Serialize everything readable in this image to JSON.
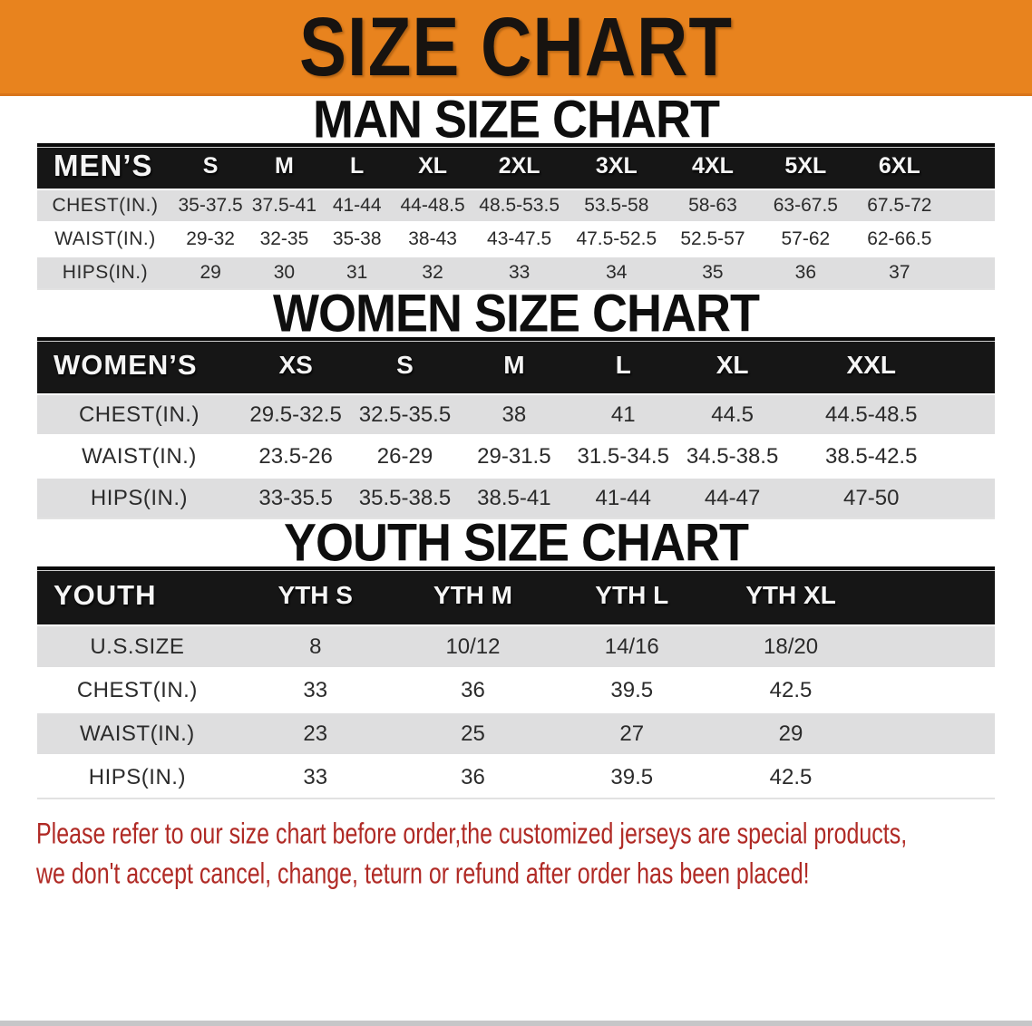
{
  "banner": {
    "title": "SIZE CHART",
    "bg_color": "#E8831E"
  },
  "sections": [
    {
      "id": "men",
      "heading": "MAN SIZE CHART",
      "table": {
        "header_label": "MEN’S",
        "columns": [
          "S",
          "M",
          "L",
          "XL",
          "2XL",
          "3XL",
          "4XL",
          "5XL",
          "6XL"
        ],
        "rows": [
          {
            "label": "CHEST(IN.)",
            "values": [
              "35-37.5",
              "37.5-41",
              "41-44",
              "44-48.5",
              "48.5-53.5",
              "53.5-58",
              "58-63",
              "63-67.5",
              "67.5-72"
            ]
          },
          {
            "label": "WAIST(IN.)",
            "values": [
              "29-32",
              "32-35",
              "35-38",
              "38-43",
              "43-47.5",
              "47.5-52.5",
              "52.5-57",
              "57-62",
              "62-66.5"
            ]
          },
          {
            "label": "HIPS(IN.)",
            "values": [
              "29",
              "30",
              "31",
              "32",
              "33",
              "34",
              "35",
              "36",
              "37"
            ]
          }
        ]
      }
    },
    {
      "id": "women",
      "heading": "WOMEN SIZE CHART",
      "table": {
        "header_label": "WOMEN’S",
        "columns": [
          "XS",
          "S",
          "M",
          "L",
          "XL",
          "XXL"
        ],
        "rows": [
          {
            "label": "CHEST(IN.)",
            "values": [
              "29.5-32.5",
              "32.5-35.5",
              "38",
              "41",
              "44.5",
              "44.5-48.5"
            ]
          },
          {
            "label": "WAIST(IN.)",
            "values": [
              "23.5-26",
              "26-29",
              "29-31.5",
              "31.5-34.5",
              "34.5-38.5",
              "38.5-42.5"
            ]
          },
          {
            "label": "HIPS(IN.)",
            "values": [
              "33-35.5",
              "35.5-38.5",
              "38.5-41",
              "41-44",
              "44-47",
              "47-50"
            ]
          }
        ]
      }
    },
    {
      "id": "youth",
      "heading": "YOUTH SIZE CHART",
      "table": {
        "header_label": "YOUTH",
        "columns": [
          "YTH S",
          "YTH M",
          "YTH L",
          "YTH XL"
        ],
        "rows": [
          {
            "label": "U.S.SIZE",
            "values": [
              "8",
              "10/12",
              "14/16",
              "18/20"
            ]
          },
          {
            "label": "CHEST(IN.)",
            "values": [
              "33",
              "36",
              "39.5",
              "42.5"
            ]
          },
          {
            "label": "WAIST(IN.)",
            "values": [
              "23",
              "25",
              "27",
              "29"
            ]
          },
          {
            "label": "HIPS(IN.)",
            "values": [
              "33",
              "36",
              "39.5",
              "42.5"
            ]
          }
        ]
      }
    }
  ],
  "disclaimer": {
    "lines": [
      "Please refer to our size chart before order,the customized jerseys are special products,",
      "we don't accept cancel, change, teturn or refund after order has been placed!"
    ]
  },
  "colors": {
    "banner_orange": "#E8831E",
    "table_header_black": "#161616",
    "row_gray": "#DEDEDF",
    "row_white": "#FFFFFF",
    "disclaimer_red": "#B02A25"
  }
}
